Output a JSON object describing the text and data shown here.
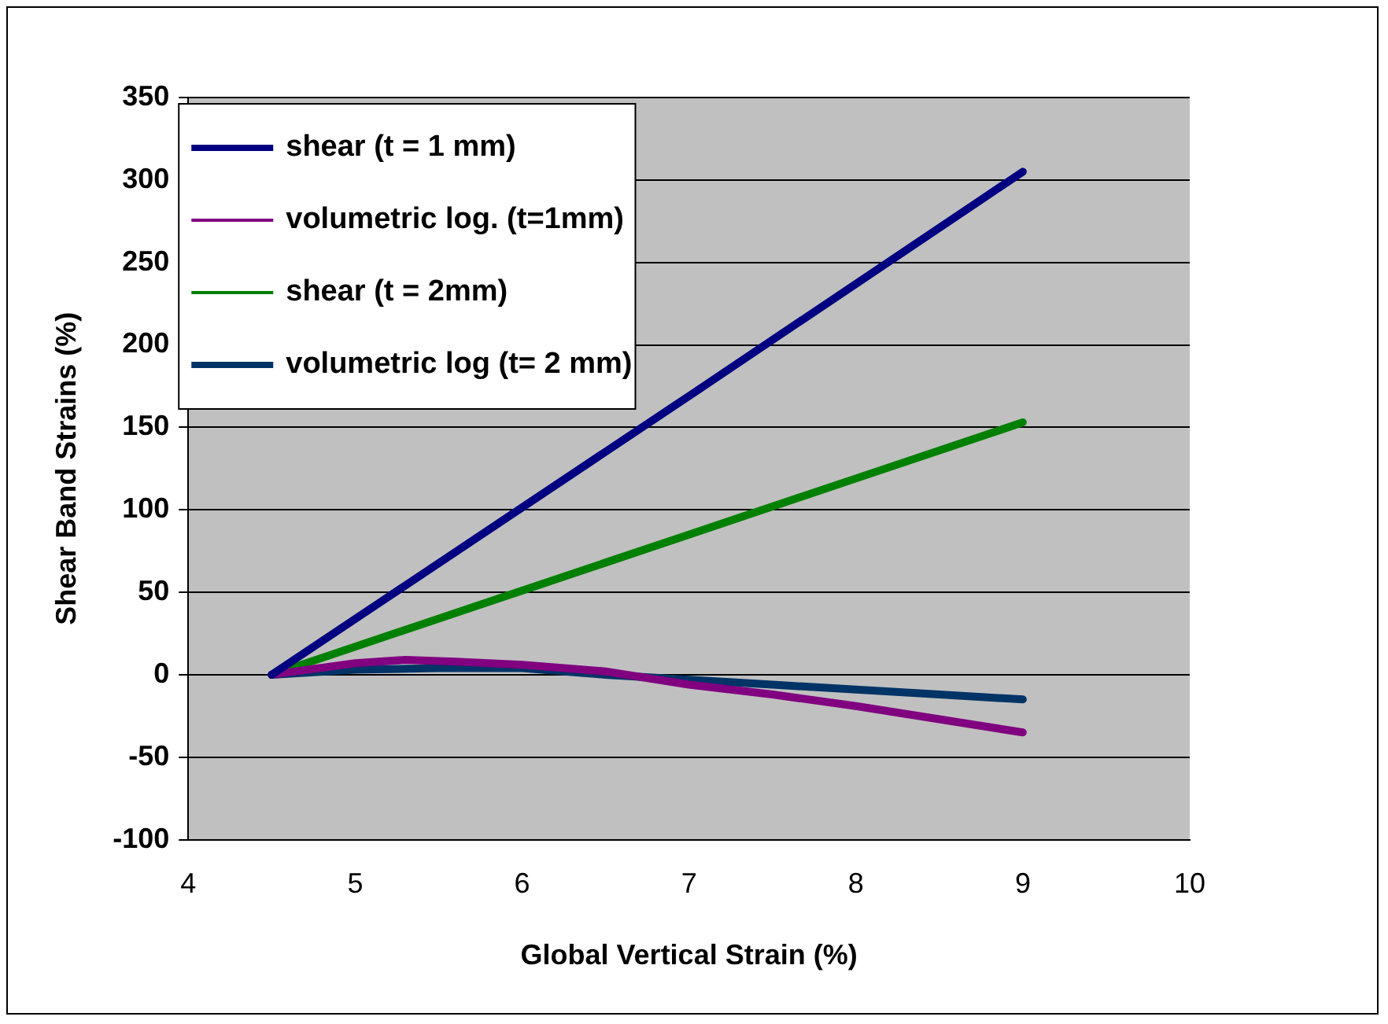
{
  "chart_data": {
    "type": "line",
    "xlabel": "Global Vertical Strain (%)",
    "ylabel": "Shear Band Strains (%)",
    "xlim": [
      4,
      10
    ],
    "xticks": [
      4,
      5,
      6,
      7,
      8,
      9,
      10
    ],
    "ylim": [
      -100,
      350
    ],
    "yticks": [
      -100,
      -50,
      0,
      50,
      100,
      150,
      200,
      250,
      300,
      350
    ],
    "grid": "y",
    "legend": "top left",
    "marker": "none",
    "line_style": "solid",
    "series": [
      {
        "name": "shear (t = 1 mm)",
        "color": "#000080",
        "x": [
          4.5,
          7,
          9
        ],
        "values": [
          0,
          169,
          305
        ]
      },
      {
        "name": "volumetric log. (t=1mm)",
        "color": "#800080",
        "x": [
          4.5,
          5,
          5.3,
          5.6,
          6,
          6.5,
          7,
          7.5,
          8,
          8.5,
          9
        ],
        "values": [
          0,
          7,
          9,
          8,
          6,
          2,
          -6,
          -12,
          -19,
          -27,
          -35
        ]
      },
      {
        "name": "shear (t = 2mm)",
        "color": "#008000",
        "x": [
          4.5,
          6,
          7,
          8,
          9
        ],
        "values": [
          0,
          51,
          85,
          119,
          153
        ]
      },
      {
        "name": "volumetric log (t= 2 mm)",
        "color": "#003366",
        "x": [
          4.5,
          5,
          5.5,
          6,
          6.5,
          7,
          7.5,
          8,
          8.5,
          9
        ],
        "values": [
          0,
          3,
          4,
          4,
          0,
          -3,
          -6,
          -9,
          -12,
          -15
        ]
      }
    ]
  }
}
